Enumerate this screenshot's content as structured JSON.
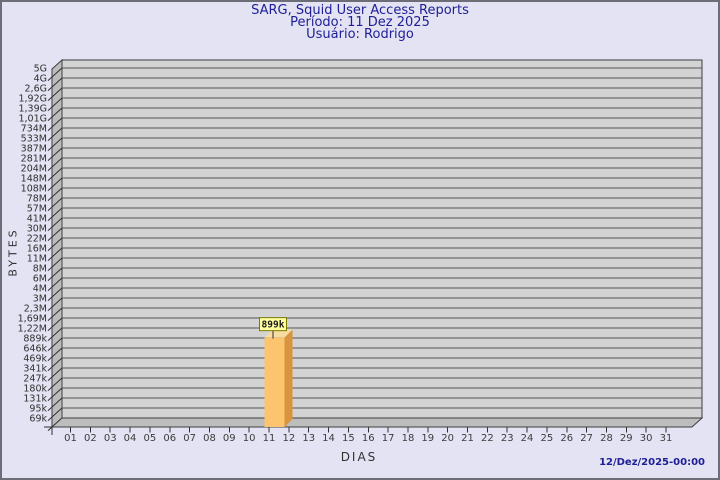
{
  "page": {
    "background": "#e3e3f3",
    "border_color": "#6d6d78"
  },
  "header": {
    "line1": "SARG, Squid User Access Reports",
    "line2": "Período: 11 Dez 2025",
    "line3": "Usuário: Rodrigo",
    "color": "#1e1e96"
  },
  "footer": {
    "timestamp": "12/Dez/2025-00:00",
    "color": "#1e1e96"
  },
  "chart_data": {
    "type": "bar",
    "title": "SARG, Squid User Access Reports",
    "subtitle_period": "Período: 11 Dez 2025",
    "subtitle_user": "Usuário: Rodrigo",
    "xlabel": "DIAS",
    "ylabel": "BYTES",
    "y_scale": "log",
    "y_range_top": "5G",
    "y_range_bottom": "69k",
    "grid": "horizontal",
    "categories": [
      "01",
      "02",
      "03",
      "04",
      "05",
      "06",
      "07",
      "08",
      "09",
      "10",
      "11",
      "12",
      "13",
      "14",
      "15",
      "16",
      "17",
      "18",
      "19",
      "20",
      "21",
      "22",
      "23",
      "24",
      "25",
      "26",
      "27",
      "28",
      "29",
      "30",
      "31"
    ],
    "values": [
      0,
      0,
      0,
      0,
      0,
      0,
      0,
      0,
      0,
      0,
      899000,
      0,
      0,
      0,
      0,
      0,
      0,
      0,
      0,
      0,
      0,
      0,
      0,
      0,
      0,
      0,
      0,
      0,
      0,
      0,
      0
    ],
    "bar_labels": [
      "",
      "",
      "",
      "",
      "",
      "",
      "",
      "",
      "",
      "",
      "899k",
      "",
      "",
      "",
      "",
      "",
      "",
      "",
      "",
      "",
      "",
      "",
      "",
      "",
      "",
      "",
      "",
      "",
      "",
      "",
      ""
    ],
    "y_ticks": [
      "5G",
      "4G",
      "2,6G",
      "1,92G",
      "1,39G",
      "1,01G",
      "734M",
      "533M",
      "387M",
      "281M",
      "204M",
      "148M",
      "108M",
      "78M",
      "57M",
      "41M",
      "30M",
      "22M",
      "16M",
      "11M",
      "8M",
      "6M",
      "4M",
      "3M",
      "2,3M",
      "1,69M",
      "1,22M",
      "889k",
      "646k",
      "469k",
      "341k",
      "247k",
      "180k",
      "131k",
      "95k",
      "69k"
    ],
    "colors": {
      "wall": "#d3d3d3",
      "depth_wall": "#bdbdbd",
      "grid": "#565656",
      "line": "#3e3e3e",
      "tick": "#303030",
      "tick_label": "#3c3c3c",
      "bar_front": "#FCC46F",
      "bar_side": "#D9943E",
      "bar_top": "#F6DCA0",
      "callout_bg": "#FFFF9E",
      "callout_border": "#7a7a00",
      "callout_text": "#1a1a1a"
    }
  }
}
